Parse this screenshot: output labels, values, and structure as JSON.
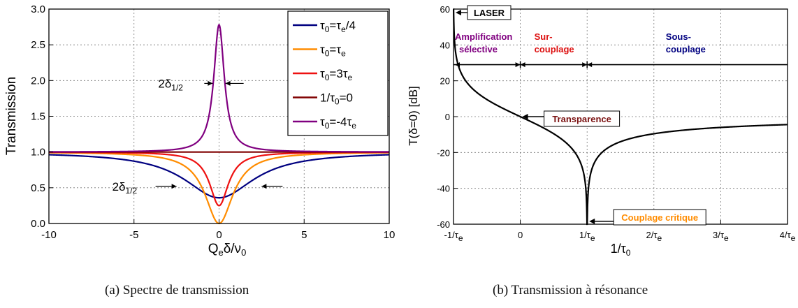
{
  "captions": {
    "left": "(a) Spectre de transmission",
    "right": "(b) Transmission à résonance"
  },
  "chart_data": [
    {
      "type": "line",
      "xlabel": "Qeδ/ν0",
      "ylabel": "Transmission",
      "xlim": [
        -10,
        10
      ],
      "ylim": [
        0,
        3
      ],
      "grid": true,
      "legend_position": "top-right",
      "x_ticks": [
        "-10",
        "-5",
        "0",
        "5",
        "10"
      ],
      "y_ticks": [
        "0.0",
        "0.5",
        "1.0",
        "1.5",
        "2.0",
        "2.5",
        "3.0"
      ],
      "series": [
        {
          "name": "τ0=τe/4",
          "color": "#000080",
          "dip_center_value": 0.36,
          "half_width": 2.5,
          "asymptote": 1.0
        },
        {
          "name": "τ0=τe",
          "color": "#ff8c00",
          "dip_center_value": 0.0,
          "half_width": 1.0,
          "asymptote": 1.0
        },
        {
          "name": "τ0=3τe",
          "color": "#ee1111",
          "dip_center_value": 0.25,
          "half_width": 0.67,
          "asymptote": 1.0
        },
        {
          "name": "1/τ0=0",
          "color": "#800000",
          "dip_center_value": 1.0,
          "half_width": 0,
          "asymptote": 1.0
        },
        {
          "name": "τ0=-4τe",
          "color": "#800080",
          "peak_center_value": 2.78,
          "half_width": 0.375,
          "asymptote": 1.0
        }
      ],
      "annotations": [
        {
          "label": "2δ1/2",
          "y": 1.96,
          "x_range": [
            -0.375,
            0.375
          ]
        },
        {
          "label": "2δ1/2",
          "y": 0.52,
          "x_range": [
            -2.5,
            2.5
          ]
        }
      ]
    },
    {
      "type": "line",
      "xlabel": "1/τ0",
      "ylabel": "T(δ=0) [dB]",
      "xlim": [
        -1,
        4
      ],
      "ylim": [
        -60,
        60
      ],
      "grid": true,
      "x_ticks": [
        "-1/τe",
        "0",
        "1/τe",
        "2/τe",
        "3/τe",
        "4/τe"
      ],
      "y_ticks": [
        "-60",
        "-40",
        "-20",
        "0",
        "20",
        "40",
        "60"
      ],
      "series": [
        {
          "name": "",
          "color": "#000000",
          "formula": "20·log10(|1-u|/|1+u|), u = x (in units of 1/τe)"
        }
      ],
      "region_line_y": 29,
      "annotations": [
        {
          "label": "LASER",
          "x": -1,
          "y": 58,
          "color": "#000000"
        },
        {
          "label": "Transparence",
          "x": 0,
          "y": 0,
          "color": "#7a1010"
        },
        {
          "label": "Couplage critique",
          "x": 1,
          "y": -58,
          "color": "#ff8c00"
        }
      ],
      "regions": [
        {
          "line1": "Amplification",
          "line2": "sélective",
          "color": "#800080"
        },
        {
          "line1": "Sur-",
          "line2": "couplage",
          "color": "#dd1111"
        },
        {
          "line1": "Sous-",
          "line2": "couplage",
          "color": "#000080"
        }
      ]
    }
  ]
}
